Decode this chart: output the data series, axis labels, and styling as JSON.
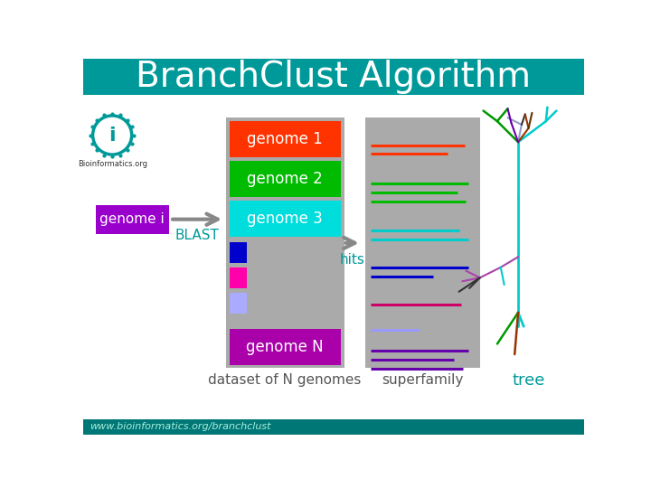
{
  "title": "BranchClust Algorithm",
  "title_bg": "#009999",
  "title_color": "#ffffff",
  "bg_color": "#ffffff",
  "main_bg": "#ffffff",
  "footer_text": "www.bioinformatics.org/branchclust",
  "genome_i_label": "genome i",
  "genome_i_bg": "#9900cc",
  "genome_i_color": "#ffffff",
  "blast_label": "BLAST",
  "blast_color": "#009999",
  "hits_label": "hits",
  "hits_color": "#009999",
  "dataset_label": "dataset of N genomes",
  "dataset_color": "#555555",
  "superfamily_label": "superfamily",
  "superfamily_color": "#555555",
  "tree_label": "tree",
  "tree_color": "#009999",
  "panel1_bg": "#aaaaaa",
  "panel2_bg": "#aaaaaa",
  "genome_boxes": [
    {
      "label": "genome 1",
      "color": "#ff3300",
      "text_color": "#ffffff"
    },
    {
      "label": "genome 2",
      "color": "#00bb00",
      "text_color": "#ffffff"
    },
    {
      "label": "genome 3",
      "color": "#00dddd",
      "text_color": "#ffffff"
    },
    {
      "label": "genome N",
      "color": "#aa00aa",
      "text_color": "#ffffff"
    }
  ],
  "small_boxes": [
    {
      "color": "#0000cc"
    },
    {
      "color": "#ff00aa"
    },
    {
      "color": "#aaaaff"
    }
  ]
}
